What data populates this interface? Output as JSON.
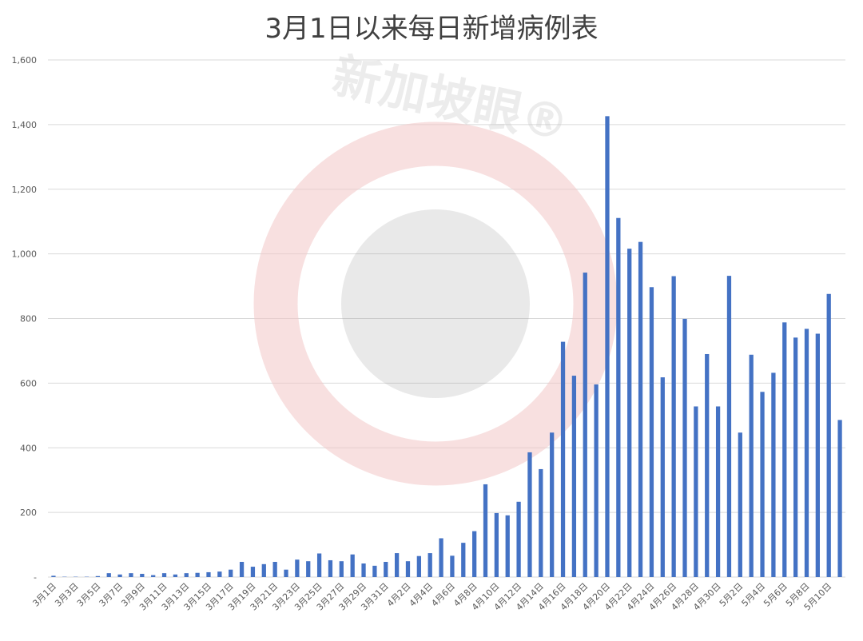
{
  "chart_data": {
    "type": "bar",
    "title": "3月1日以来每日新增病例表",
    "xlabel": "",
    "ylabel": "",
    "ylim": [
      0,
      1600
    ],
    "yticks": [
      0,
      200,
      400,
      600,
      800,
      1000,
      1200,
      1400,
      1600
    ],
    "ytick_labels": [
      "-",
      "200",
      "400",
      "600",
      "800",
      "1,000",
      "1,200",
      "1,400",
      "1,600"
    ],
    "grid": true,
    "bar_color": "#4472c4",
    "categories": [
      "3月1日",
      "3月2日",
      "3月3日",
      "3月4日",
      "3月5日",
      "3月6日",
      "3月7日",
      "3月8日",
      "3月9日",
      "3月10日",
      "3月11日",
      "3月12日",
      "3月13日",
      "3月14日",
      "3月15日",
      "3月16日",
      "3月17日",
      "3月18日",
      "3月19日",
      "3月20日",
      "3月21日",
      "3月22日",
      "3月23日",
      "3月24日",
      "3月25日",
      "3月26日",
      "3月27日",
      "3月28日",
      "3月29日",
      "3月30日",
      "3月31日",
      "4月1日",
      "4月2日",
      "4月3日",
      "4月4日",
      "4月5日",
      "4月6日",
      "4月7日",
      "4月8日",
      "4月9日",
      "4月10日",
      "4月11日",
      "4月12日",
      "4月13日",
      "4月14日",
      "4月15日",
      "4月16日",
      "4月17日",
      "4月18日",
      "4月19日",
      "4月20日",
      "4月21日",
      "4月22日",
      "4月23日",
      "4月24日",
      "4月25日",
      "4月26日",
      "4月27日",
      "4月28日",
      "4月29日",
      "4月30日",
      "5月1日",
      "5月2日",
      "5月3日",
      "5月4日",
      "5月5日",
      "5月6日",
      "5月7日",
      "5月8日",
      "5月9日",
      "5月10日",
      "5月11日"
    ],
    "x_tick_labels": [
      "3月1日",
      "3月3日",
      "3月5日",
      "3月7日",
      "3月9日",
      "3月11日",
      "3月13日",
      "3月15日",
      "3月17日",
      "3月19日",
      "3月21日",
      "3月23日",
      "3月25日",
      "3月27日",
      "3月29日",
      "3月31日",
      "4月2日",
      "4月4日",
      "4月6日",
      "4月8日",
      "4月10日",
      "4月12日",
      "4月14日",
      "4月16日",
      "4月18日",
      "4月20日",
      "4月22日",
      "4月24日",
      "4月26日",
      "4月28日",
      "4月30日",
      "5月2日",
      "5月4日",
      "5月6日",
      "5月8日",
      "5月10日"
    ],
    "values": [
      4,
      1,
      1,
      1,
      3,
      12,
      8,
      12,
      10,
      6,
      12,
      8,
      12,
      13,
      15,
      17,
      23,
      47,
      32,
      40,
      47,
      23,
      54,
      49,
      73,
      52,
      49,
      70,
      42,
      35,
      47,
      74,
      49,
      65,
      74,
      120,
      66,
      106,
      142,
      287,
      198,
      191,
      233,
      386,
      334,
      447,
      728,
      623,
      942,
      596,
      1426,
      1111,
      1016,
      1037,
      897,
      618,
      931,
      799,
      528,
      690,
      528,
      932,
      447,
      688,
      573,
      632,
      788,
      741,
      768,
      753,
      876,
      486
    ]
  },
  "watermark": {
    "text": "新加坡眼®",
    "color": "#e84a4a"
  }
}
